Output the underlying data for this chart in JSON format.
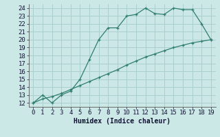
{
  "line1_x": [
    0,
    1,
    2,
    3,
    4,
    5,
    6,
    7,
    8,
    9,
    10,
    11,
    12,
    13,
    14,
    15,
    16,
    17,
    18,
    19
  ],
  "line1_y": [
    12,
    13,
    12,
    13,
    13.5,
    15,
    17.5,
    20,
    21.5,
    21.5,
    23,
    23.2,
    24,
    23.3,
    23.2,
    24,
    23.8,
    23.8,
    22,
    20
  ],
  "line2_x": [
    0,
    1,
    2,
    3,
    4,
    5,
    6,
    7,
    8,
    9,
    10,
    11,
    12,
    13,
    14,
    15,
    16,
    17,
    18,
    19
  ],
  "line2_y": [
    12,
    12.5,
    12.8,
    13.2,
    13.7,
    14.2,
    14.7,
    15.2,
    15.7,
    16.2,
    16.8,
    17.3,
    17.8,
    18.2,
    18.6,
    19.0,
    19.3,
    19.6,
    19.8,
    20
  ],
  "line_color": "#2e7d6e",
  "bg_color": "#cce8e6",
  "grid_color": "#aacfcc",
  "xlabel": "Humidex (Indice chaleur)",
  "xlim": [
    -0.5,
    19.5
  ],
  "ylim": [
    11.5,
    24.5
  ],
  "xticks": [
    0,
    1,
    2,
    3,
    4,
    5,
    6,
    7,
    8,
    9,
    10,
    11,
    12,
    13,
    14,
    15,
    16,
    17,
    18,
    19
  ],
  "yticks": [
    12,
    13,
    14,
    15,
    16,
    17,
    18,
    19,
    20,
    21,
    22,
    23,
    24
  ],
  "fontsize": 6.5
}
